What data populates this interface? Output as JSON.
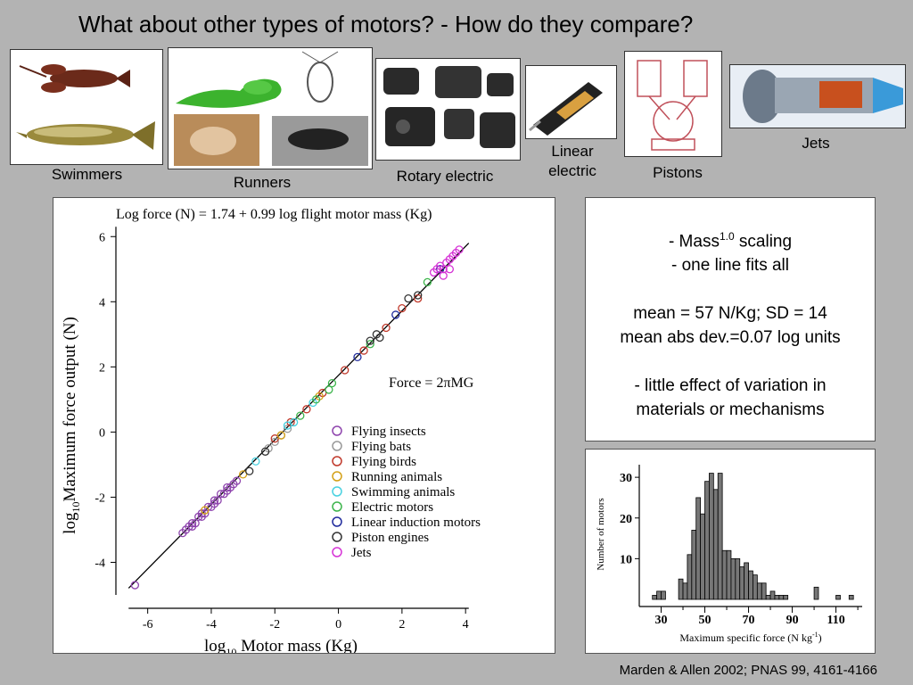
{
  "title": "What about other types of motors?  -  How do they compare?",
  "categories": {
    "swimmers": "Swimmers",
    "runners": "Runners",
    "rotary": "Rotary electric",
    "linear_line1": "Linear",
    "linear_line2": "electric",
    "pistons": "Pistons",
    "jets": "Jets"
  },
  "stats": {
    "line1_pre": "- Mass",
    "line1_sup": "1.0",
    "line1_post": " scaling",
    "line2": "- one line fits all",
    "line3": "mean = 57 N/Kg; SD = 14",
    "line4": "mean abs dev.=0.07 log units",
    "line5": "- little effect of variation in",
    "line6": "materials or mechanisms"
  },
  "citation": "Marden & Allen 2002; PNAS 99, 4161-4166",
  "chart_data": [
    {
      "type": "scatter",
      "title": "Log force (N) = 1.74 + 0.99 log flight motor mass (Kg)",
      "annotation": "Force = 2πMG",
      "xlabel": "log10 Motor mass (Kg)",
      "ylabel": "log10 Maximum force output (N)",
      "xlim": [
        -7,
        4.5
      ],
      "ylim": [
        -5,
        6.5
      ],
      "xticks": [
        -6,
        -4,
        -2,
        0,
        2,
        4
      ],
      "yticks": [
        -4,
        -2,
        0,
        2,
        4,
        6
      ],
      "fit": {
        "intercept": 1.74,
        "slope": 0.99
      },
      "legend_position": "lower-right",
      "series": [
        {
          "name": "Flying insects",
          "color": "#8e44ad",
          "points": [
            [
              -4.9,
              -3.1
            ],
            [
              -4.8,
              -3.0
            ],
            [
              -4.7,
              -2.9
            ],
            [
              -4.6,
              -2.9
            ],
            [
              -4.5,
              -2.8
            ],
            [
              -4.4,
              -2.6
            ],
            [
              -4.3,
              -2.6
            ],
            [
              -4.2,
              -2.5
            ],
            [
              -4.1,
              -2.3
            ],
            [
              -4.0,
              -2.3
            ],
            [
              -3.9,
              -2.2
            ],
            [
              -3.8,
              -2.1
            ],
            [
              -3.7,
              -1.9
            ],
            [
              -3.6,
              -1.9
            ],
            [
              -3.5,
              -1.8
            ],
            [
              -3.4,
              -1.7
            ],
            [
              -3.3,
              -1.6
            ],
            [
              -3.2,
              -1.5
            ],
            [
              -4.6,
              -2.8
            ],
            [
              -4.3,
              -2.5
            ],
            [
              -3.9,
              -2.1
            ],
            [
              -3.5,
              -1.7
            ],
            [
              -6.4,
              -4.7
            ]
          ]
        },
        {
          "name": "Flying bats",
          "color": "#999999",
          "points": [
            [
              -2.2,
              -0.5
            ],
            [
              -2.0,
              -0.3
            ],
            [
              -1.8,
              -0.1
            ],
            [
              -1.6,
              0.1
            ]
          ]
        },
        {
          "name": "Flying birds",
          "color": "#c0392b",
          "points": [
            [
              -2.0,
              -0.2
            ],
            [
              -1.5,
              0.3
            ],
            [
              -1.0,
              0.7
            ],
            [
              -0.5,
              1.2
            ],
            [
              0.2,
              1.9
            ],
            [
              0.8,
              2.5
            ],
            [
              1.5,
              3.2
            ],
            [
              2.0,
              3.8
            ],
            [
              2.5,
              4.1
            ]
          ]
        },
        {
          "name": "Running animals",
          "color": "#d4a017",
          "points": [
            [
              -4.2,
              -2.4
            ],
            [
              -3.0,
              -1.3
            ],
            [
              -1.8,
              -0.1
            ],
            [
              -0.6,
              1.1
            ]
          ]
        },
        {
          "name": "Swimming animals",
          "color": "#48d1e0",
          "points": [
            [
              -2.6,
              -0.9
            ],
            [
              -1.6,
              0.2
            ],
            [
              -1.4,
              0.3
            ],
            [
              -0.8,
              0.9
            ]
          ]
        },
        {
          "name": "Electric motors",
          "color": "#3cb44b",
          "points": [
            [
              -1.2,
              0.5
            ],
            [
              -0.7,
              1.0
            ],
            [
              -0.3,
              1.3
            ],
            [
              -0.2,
              1.5
            ],
            [
              1.0,
              2.7
            ],
            [
              2.8,
              4.6
            ]
          ]
        },
        {
          "name": "Linear induction motors",
          "color": "#1f2a9c",
          "points": [
            [
              0.6,
              2.3
            ],
            [
              1.8,
              3.6
            ],
            [
              3.2,
              5.0
            ]
          ]
        },
        {
          "name": "Piston engines",
          "color": "#333333",
          "points": [
            [
              -2.8,
              -1.2
            ],
            [
              -2.3,
              -0.6
            ],
            [
              1.0,
              2.8
            ],
            [
              1.2,
              3.0
            ],
            [
              1.3,
              2.9
            ],
            [
              2.2,
              4.1
            ],
            [
              2.5,
              4.2
            ]
          ]
        },
        {
          "name": "Jets",
          "color": "#d633d6",
          "points": [
            [
              3.0,
              4.9
            ],
            [
              3.1,
              5.0
            ],
            [
              3.2,
              5.1
            ],
            [
              3.3,
              5.0
            ],
            [
              3.4,
              5.2
            ],
            [
              3.5,
              5.3
            ],
            [
              3.6,
              5.4
            ],
            [
              3.7,
              5.5
            ],
            [
              3.8,
              5.6
            ],
            [
              3.3,
              4.8
            ],
            [
              3.5,
              5.0
            ]
          ]
        }
      ]
    },
    {
      "type": "bar",
      "xlabel": "Maximum specific force (N kg-1)",
      "ylabel": "Number of motors",
      "xlim": [
        20,
        122
      ],
      "ylim": [
        0,
        32
      ],
      "xticks": [
        30,
        50,
        70,
        90,
        110
      ],
      "yticks": [
        10,
        20,
        30
      ],
      "bin_width": 2,
      "bin_starts": [
        24,
        26,
        28,
        30,
        32,
        34,
        36,
        38,
        40,
        42,
        44,
        46,
        48,
        50,
        52,
        54,
        56,
        58,
        60,
        62,
        64,
        66,
        68,
        70,
        72,
        74,
        76,
        78,
        80,
        82,
        84,
        86,
        88,
        90,
        92,
        94,
        96,
        98,
        100,
        102,
        104,
        106,
        108,
        110,
        112,
        114,
        116,
        118
      ],
      "values": [
        0,
        1,
        2,
        2,
        0,
        0,
        0,
        5,
        4,
        11,
        17,
        25,
        21,
        29,
        31,
        27,
        31,
        12,
        12,
        10,
        10,
        8,
        9,
        7,
        6,
        4,
        4,
        1,
        2,
        1,
        1,
        1,
        0,
        0,
        0,
        0,
        0,
        0,
        3,
        0,
        0,
        0,
        0,
        1,
        0,
        0,
        1,
        0
      ]
    }
  ]
}
